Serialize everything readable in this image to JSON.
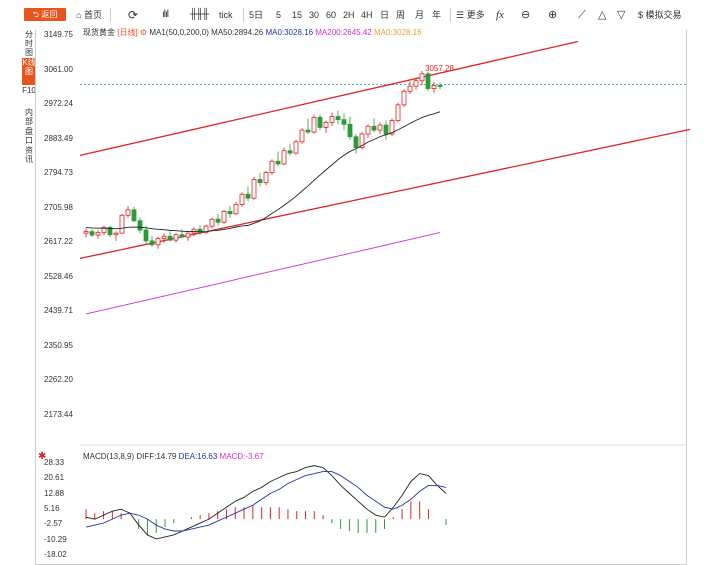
{
  "toolbar": {
    "back_label": "返回",
    "home_label": "首页",
    "tick_label": "tick",
    "periods": [
      "5日",
      "5",
      "15",
      "30",
      "60",
      "2H",
      "4H",
      "日",
      "周",
      "月",
      "年"
    ],
    "more_label": "更多",
    "trade_label": "模拟交易"
  },
  "side_tabs": [
    "分时图",
    "K线图",
    "F10",
    "内部",
    "盘口",
    "资讯"
  ],
  "legend": {
    "name": "现货黄金",
    "period": "[日线]",
    "ma_settings": "MA1(50,0,200,0)",
    "ma50": "MA50:2894.26",
    "ma0a": "MA0:3028.16",
    "ma200": "MA200:2645.42",
    "ma0b": "MA0:3028.16"
  },
  "price_axis": [
    "3149.75",
    "3061.00",
    "2972.24",
    "2883.49",
    "2794.73",
    "2705.98",
    "2617.22",
    "2528.46",
    "2439.71",
    "2350.95",
    "2262.20",
    "2173.44"
  ],
  "last_high_label": "3057.28",
  "macd_legend": {
    "title": "MACD(13,8,9)",
    "diff": "DIFF:14.79",
    "dea": "DEA:16.63",
    "macd": "MACD:-3.67"
  },
  "macd_axis": [
    "28.33",
    "20.61",
    "12.88",
    "5.16",
    "-2.57",
    "-10.29",
    "-18.02"
  ],
  "colors": {
    "accent": "#e8541e",
    "up": "#e02222",
    "down": "#2a9a3a",
    "ma50": "#222222",
    "ma200": "#d030d0",
    "ma0": "#e8a030",
    "channel": "#e02222",
    "diff": "#222222",
    "dea": "#2233aa"
  },
  "candles": [
    [
      2640,
      2652,
      2628,
      2644
    ],
    [
      2644,
      2650,
      2630,
      2635
    ],
    [
      2635,
      2648,
      2626,
      2642
    ],
    [
      2642,
      2660,
      2635,
      2655
    ],
    [
      2655,
      2660,
      2630,
      2636
    ],
    [
      2636,
      2645,
      2620,
      2640
    ],
    [
      2640,
      2690,
      2638,
      2686
    ],
    [
      2686,
      2710,
      2680,
      2700
    ],
    [
      2700,
      2708,
      2668,
      2672
    ],
    [
      2672,
      2680,
      2640,
      2648
    ],
    [
      2648,
      2660,
      2612,
      2620
    ],
    [
      2620,
      2632,
      2605,
      2610
    ],
    [
      2610,
      2630,
      2600,
      2626
    ],
    [
      2626,
      2640,
      2615,
      2632
    ],
    [
      2632,
      2645,
      2618,
      2622
    ],
    [
      2622,
      2640,
      2615,
      2636
    ],
    [
      2636,
      2650,
      2626,
      2630
    ],
    [
      2630,
      2642,
      2620,
      2640
    ],
    [
      2640,
      2655,
      2632,
      2650
    ],
    [
      2650,
      2660,
      2636,
      2642
    ],
    [
      2642,
      2662,
      2638,
      2658
    ],
    [
      2658,
      2680,
      2652,
      2676
    ],
    [
      2676,
      2690,
      2660,
      2668
    ],
    [
      2668,
      2700,
      2664,
      2696
    ],
    [
      2696,
      2710,
      2680,
      2690
    ],
    [
      2690,
      2720,
      2686,
      2714
    ],
    [
      2714,
      2745,
      2708,
      2740
    ],
    [
      2740,
      2760,
      2722,
      2730
    ],
    [
      2730,
      2785,
      2726,
      2778
    ],
    [
      2778,
      2795,
      2760,
      2770
    ],
    [
      2770,
      2800,
      2764,
      2796
    ],
    [
      2796,
      2830,
      2790,
      2825
    ],
    [
      2825,
      2850,
      2812,
      2818
    ],
    [
      2818,
      2860,
      2815,
      2852
    ],
    [
      2852,
      2870,
      2840,
      2846
    ],
    [
      2846,
      2880,
      2842,
      2875
    ],
    [
      2875,
      2910,
      2870,
      2905
    ],
    [
      2905,
      2935,
      2895,
      2900
    ],
    [
      2900,
      2945,
      2896,
      2938
    ],
    [
      2938,
      2945,
      2905,
      2912
    ],
    [
      2912,
      2930,
      2898,
      2925
    ],
    [
      2925,
      2950,
      2915,
      2940
    ],
    [
      2940,
      2955,
      2920,
      2932
    ],
    [
      2932,
      2948,
      2905,
      2920
    ],
    [
      2920,
      2940,
      2880,
      2888
    ],
    [
      2888,
      2895,
      2845,
      2860
    ],
    [
      2860,
      2900,
      2855,
      2895
    ],
    [
      2895,
      2920,
      2885,
      2915
    ],
    [
      2915,
      2935,
      2900,
      2905
    ],
    [
      2905,
      2925,
      2895,
      2918
    ],
    [
      2918,
      2930,
      2880,
      2895
    ],
    [
      2895,
      2935,
      2890,
      2930
    ],
    [
      2930,
      2975,
      2925,
      2970
    ],
    [
      2970,
      3010,
      2965,
      3005
    ],
    [
      3005,
      3030,
      2998,
      3018
    ],
    [
      3018,
      3040,
      3010,
      3032
    ],
    [
      3032,
      3057,
      3020,
      3050
    ],
    [
      3050,
      3056,
      3005,
      3012
    ],
    [
      3012,
      3030,
      3000,
      3020
    ],
    [
      3020,
      3028,
      3010,
      3018
    ]
  ],
  "macd": {
    "diff": [
      1,
      0,
      2,
      4,
      5,
      3,
      -3,
      -8,
      -10,
      -9,
      -8,
      -6,
      -4,
      -2,
      0,
      3,
      6,
      9,
      11,
      14,
      16,
      19,
      21,
      23,
      24,
      26,
      27,
      26,
      22,
      17,
      13,
      9,
      5,
      2,
      1,
      6,
      12,
      19,
      23,
      22,
      17,
      13
    ],
    "dea": [
      -4,
      -3,
      -2,
      0,
      2,
      3,
      2,
      0,
      -3,
      -5,
      -6,
      -6,
      -5,
      -4,
      -3,
      -1,
      1,
      3,
      5,
      7,
      10,
      13,
      15,
      18,
      20,
      22,
      23,
      24,
      24,
      22,
      19,
      16,
      12,
      9,
      6,
      5,
      7,
      10,
      14,
      17,
      17,
      16
    ],
    "hist": [
      5,
      3,
      4,
      4,
      3,
      0,
      -5,
      -8,
      -7,
      -4,
      -2,
      0,
      1,
      2,
      3,
      4,
      5,
      6,
      6,
      7,
      6,
      6,
      6,
      5,
      4,
      4,
      4,
      2,
      -2,
      -5,
      -6,
      -7,
      -7,
      -7,
      -5,
      1,
      5,
      9,
      9,
      5,
      0,
      -3
    ]
  }
}
